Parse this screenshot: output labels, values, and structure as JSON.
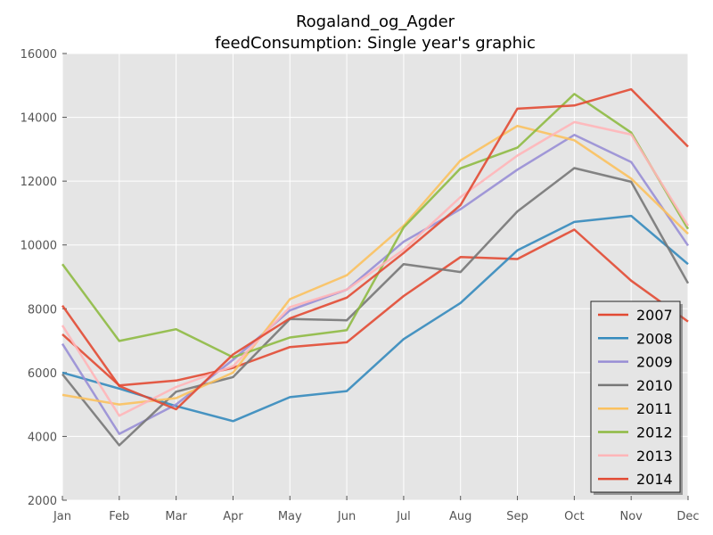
{
  "chart_data": {
    "type": "line",
    "title": "Rogaland_og_Agder",
    "subtitle": "feedConsumption: Single year's graphic",
    "xlabel": "",
    "ylabel": "",
    "categories": [
      "Jan",
      "Feb",
      "Mar",
      "Apr",
      "May",
      "Jun",
      "Jul",
      "Aug",
      "Sep",
      "Oct",
      "Nov",
      "Dec"
    ],
    "ylim": [
      2000,
      16000
    ],
    "yticks": [
      "2000",
      "4000",
      "6000",
      "8000",
      "10000",
      "12000",
      "14000",
      "16000"
    ],
    "grid": true,
    "legend_position": "lower-right",
    "series": [
      {
        "name": "2007",
        "color": "#E24A33",
        "values": [
          7200,
          5600,
          5750,
          6150,
          6800,
          6950,
          8400,
          9620,
          9560,
          10480,
          8880,
          7600
        ]
      },
      {
        "name": "2008",
        "color": "#348ABD",
        "values": [
          6000,
          5500,
          4950,
          4480,
          5230,
          5420,
          7050,
          8180,
          9830,
          10720,
          10910,
          9400
        ]
      },
      {
        "name": "2009",
        "color": "#988ED5",
        "values": [
          6900,
          4080,
          5000,
          6400,
          7950,
          8600,
          10100,
          11120,
          12360,
          13450,
          12600,
          9980
        ]
      },
      {
        "name": "2010",
        "color": "#777777",
        "values": [
          5950,
          3720,
          5400,
          5860,
          7680,
          7640,
          9400,
          9150,
          11050,
          12410,
          11980,
          8800
        ]
      },
      {
        "name": "2011",
        "color": "#FBC15E",
        "values": [
          5300,
          5000,
          5200,
          6000,
          8300,
          9050,
          10600,
          12650,
          13730,
          13280,
          12080,
          10350
        ]
      },
      {
        "name": "2012",
        "color": "#8EBA42",
        "values": [
          9400,
          6990,
          7360,
          6480,
          7100,
          7330,
          10550,
          12400,
          13050,
          14730,
          13520,
          10500
        ]
      },
      {
        "name": "2013",
        "color": "#FFB5B8",
        "values": [
          7480,
          4650,
          5550,
          6200,
          8050,
          8600,
          9850,
          11500,
          12800,
          13850,
          13460,
          10600
        ]
      },
      {
        "name": "2014",
        "color": "#E24A33",
        "values": [
          8100,
          5580,
          4850,
          6570,
          7700,
          8350,
          9750,
          11250,
          14270,
          14370,
          14880,
          13080
        ]
      }
    ]
  }
}
